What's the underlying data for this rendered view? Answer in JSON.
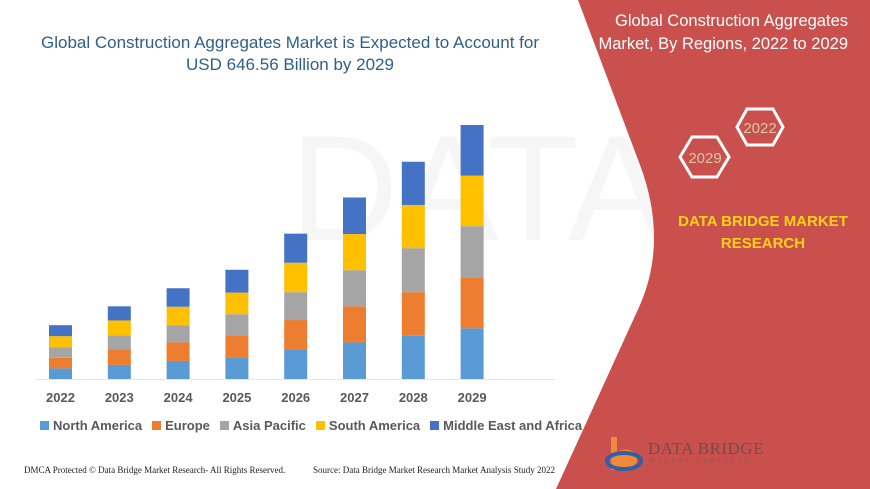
{
  "title": "Global Construction Aggregates Market is Expected to Account for USD 646.56 Billion by 2029",
  "side_panel": {
    "title": "Global Construction Aggregates Market, By Regions, 2022 to 2029",
    "hex_labels": [
      "2022",
      "2029"
    ],
    "brand": "DATA BRIDGE MARKET RESEARCH",
    "logo_text": "DATA BRIDGE",
    "logo_subtext": "MARKET RESEARCH",
    "color": "#c9504d"
  },
  "footer": {
    "left": "DMCA Protected © Data Bridge Market Research- All Rights Reserved.",
    "right": "Source: Data Bridge Market Research Market Analysis Study 2022"
  },
  "chart_data": {
    "type": "bar",
    "stacked": true,
    "title": "Global Construction Aggregates Market is Expected to Account for USD 646.56 Billion by 2029",
    "xlabel": "",
    "ylabel": "",
    "grid": false,
    "legend_position": "bottom",
    "categories": [
      "2022",
      "2023",
      "2024",
      "2025",
      "2026",
      "2027",
      "2028",
      "2029"
    ],
    "series": [
      {
        "name": "North America",
        "color": "#5b9bd5",
        "values": [
          27,
          36,
          46,
          55,
          75,
          93,
          110,
          129
        ]
      },
      {
        "name": "Europe",
        "color": "#ed7d31",
        "values": [
          27,
          39,
          47,
          56,
          75,
          92,
          111,
          130
        ]
      },
      {
        "name": "Asia Pacific",
        "color": "#a5a5a5",
        "values": [
          27,
          36,
          44,
          54,
          71,
          92,
          112,
          130
        ]
      },
      {
        "name": "South America",
        "color": "#ffc000",
        "values": [
          28,
          38,
          47,
          55,
          75,
          92,
          110,
          129
        ]
      },
      {
        "name": "Middle East and Africa",
        "color": "#4472c4",
        "values": [
          28,
          36,
          47,
          58,
          74,
          93,
          110,
          128.56
        ]
      }
    ]
  }
}
